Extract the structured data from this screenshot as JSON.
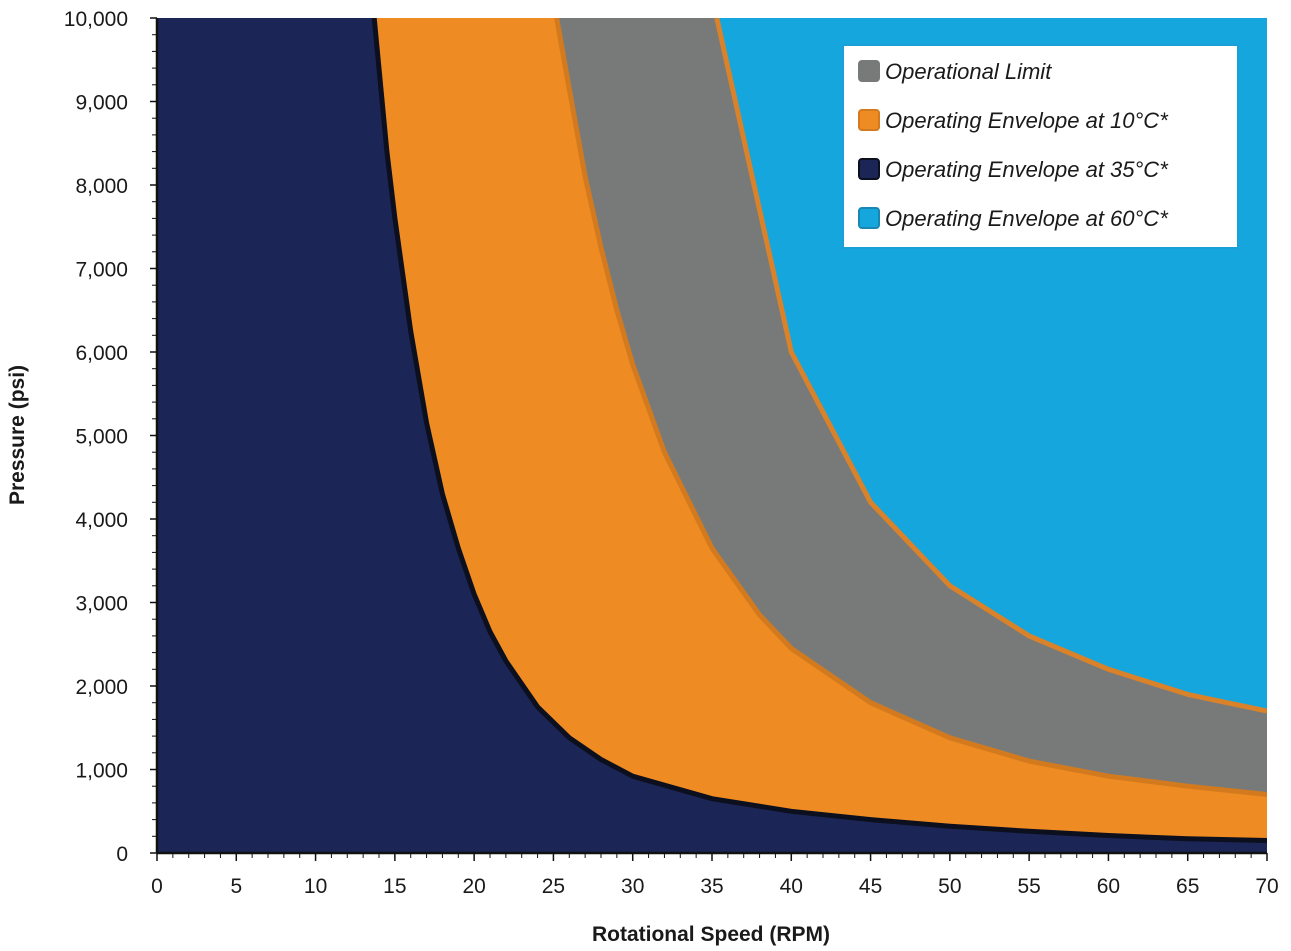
{
  "chart_data": {
    "type": "area",
    "xlabel": "Rotational Speed (RPM)",
    "ylabel": "Pressure (psi)",
    "xlim": [
      0,
      70
    ],
    "ylim": [
      0,
      10000
    ],
    "x_ticks": [
      "0",
      "5",
      "10",
      "15",
      "20",
      "25",
      "30",
      "35",
      "40",
      "45",
      "50",
      "55",
      "60",
      "65",
      "70"
    ],
    "y_ticks": [
      "0",
      "1,000",
      "2,000",
      "3,000",
      "4,000",
      "5,000",
      "6,000",
      "7,000",
      "8,000",
      "9,000",
      "10,000"
    ],
    "legend_position": "top-right",
    "grid": false,
    "series": [
      {
        "name": "Operational Limit",
        "color": "#787a7a",
        "x": [
          0,
          35.3,
          40,
          45,
          50,
          55,
          60,
          65,
          70
        ],
        "y": [
          10000,
          10000,
          6000,
          4200,
          3200,
          2600,
          2200,
          1900,
          1700
        ]
      },
      {
        "name": "Operating Envelope at 10°C*",
        "color": "#ee8b23",
        "stroke": "#d47a1e",
        "x": [
          0,
          25.2,
          26,
          27,
          28,
          29,
          30,
          32,
          35,
          38,
          40,
          45,
          50,
          55,
          60,
          65,
          70
        ],
        "y": [
          10000,
          10000,
          9150,
          8100,
          7250,
          6500,
          5850,
          4800,
          3650,
          2850,
          2450,
          1800,
          1380,
          1100,
          920,
          800,
          700
        ]
      },
      {
        "name": "Operating Envelope at 35°C*",
        "color": "#1c2656",
        "stroke": "#0c0f1e",
        "x": [
          0,
          13.7,
          14.5,
          15,
          16,
          17,
          18,
          19,
          20,
          21,
          22,
          24,
          26,
          28,
          30,
          35,
          40,
          45,
          50,
          55,
          60,
          65,
          70
        ],
        "y": [
          10000,
          10000,
          8400,
          7600,
          6250,
          5150,
          4300,
          3650,
          3100,
          2650,
          2300,
          1750,
          1380,
          1120,
          920,
          650,
          500,
          400,
          320,
          260,
          210,
          170,
          150
        ]
      },
      {
        "name": "Operating Envelope at 60°C*",
        "color": "#14a6dc",
        "stroke": "#1a86b2",
        "x": [
          0,
          70
        ],
        "y": [
          0,
          0
        ]
      }
    ]
  }
}
